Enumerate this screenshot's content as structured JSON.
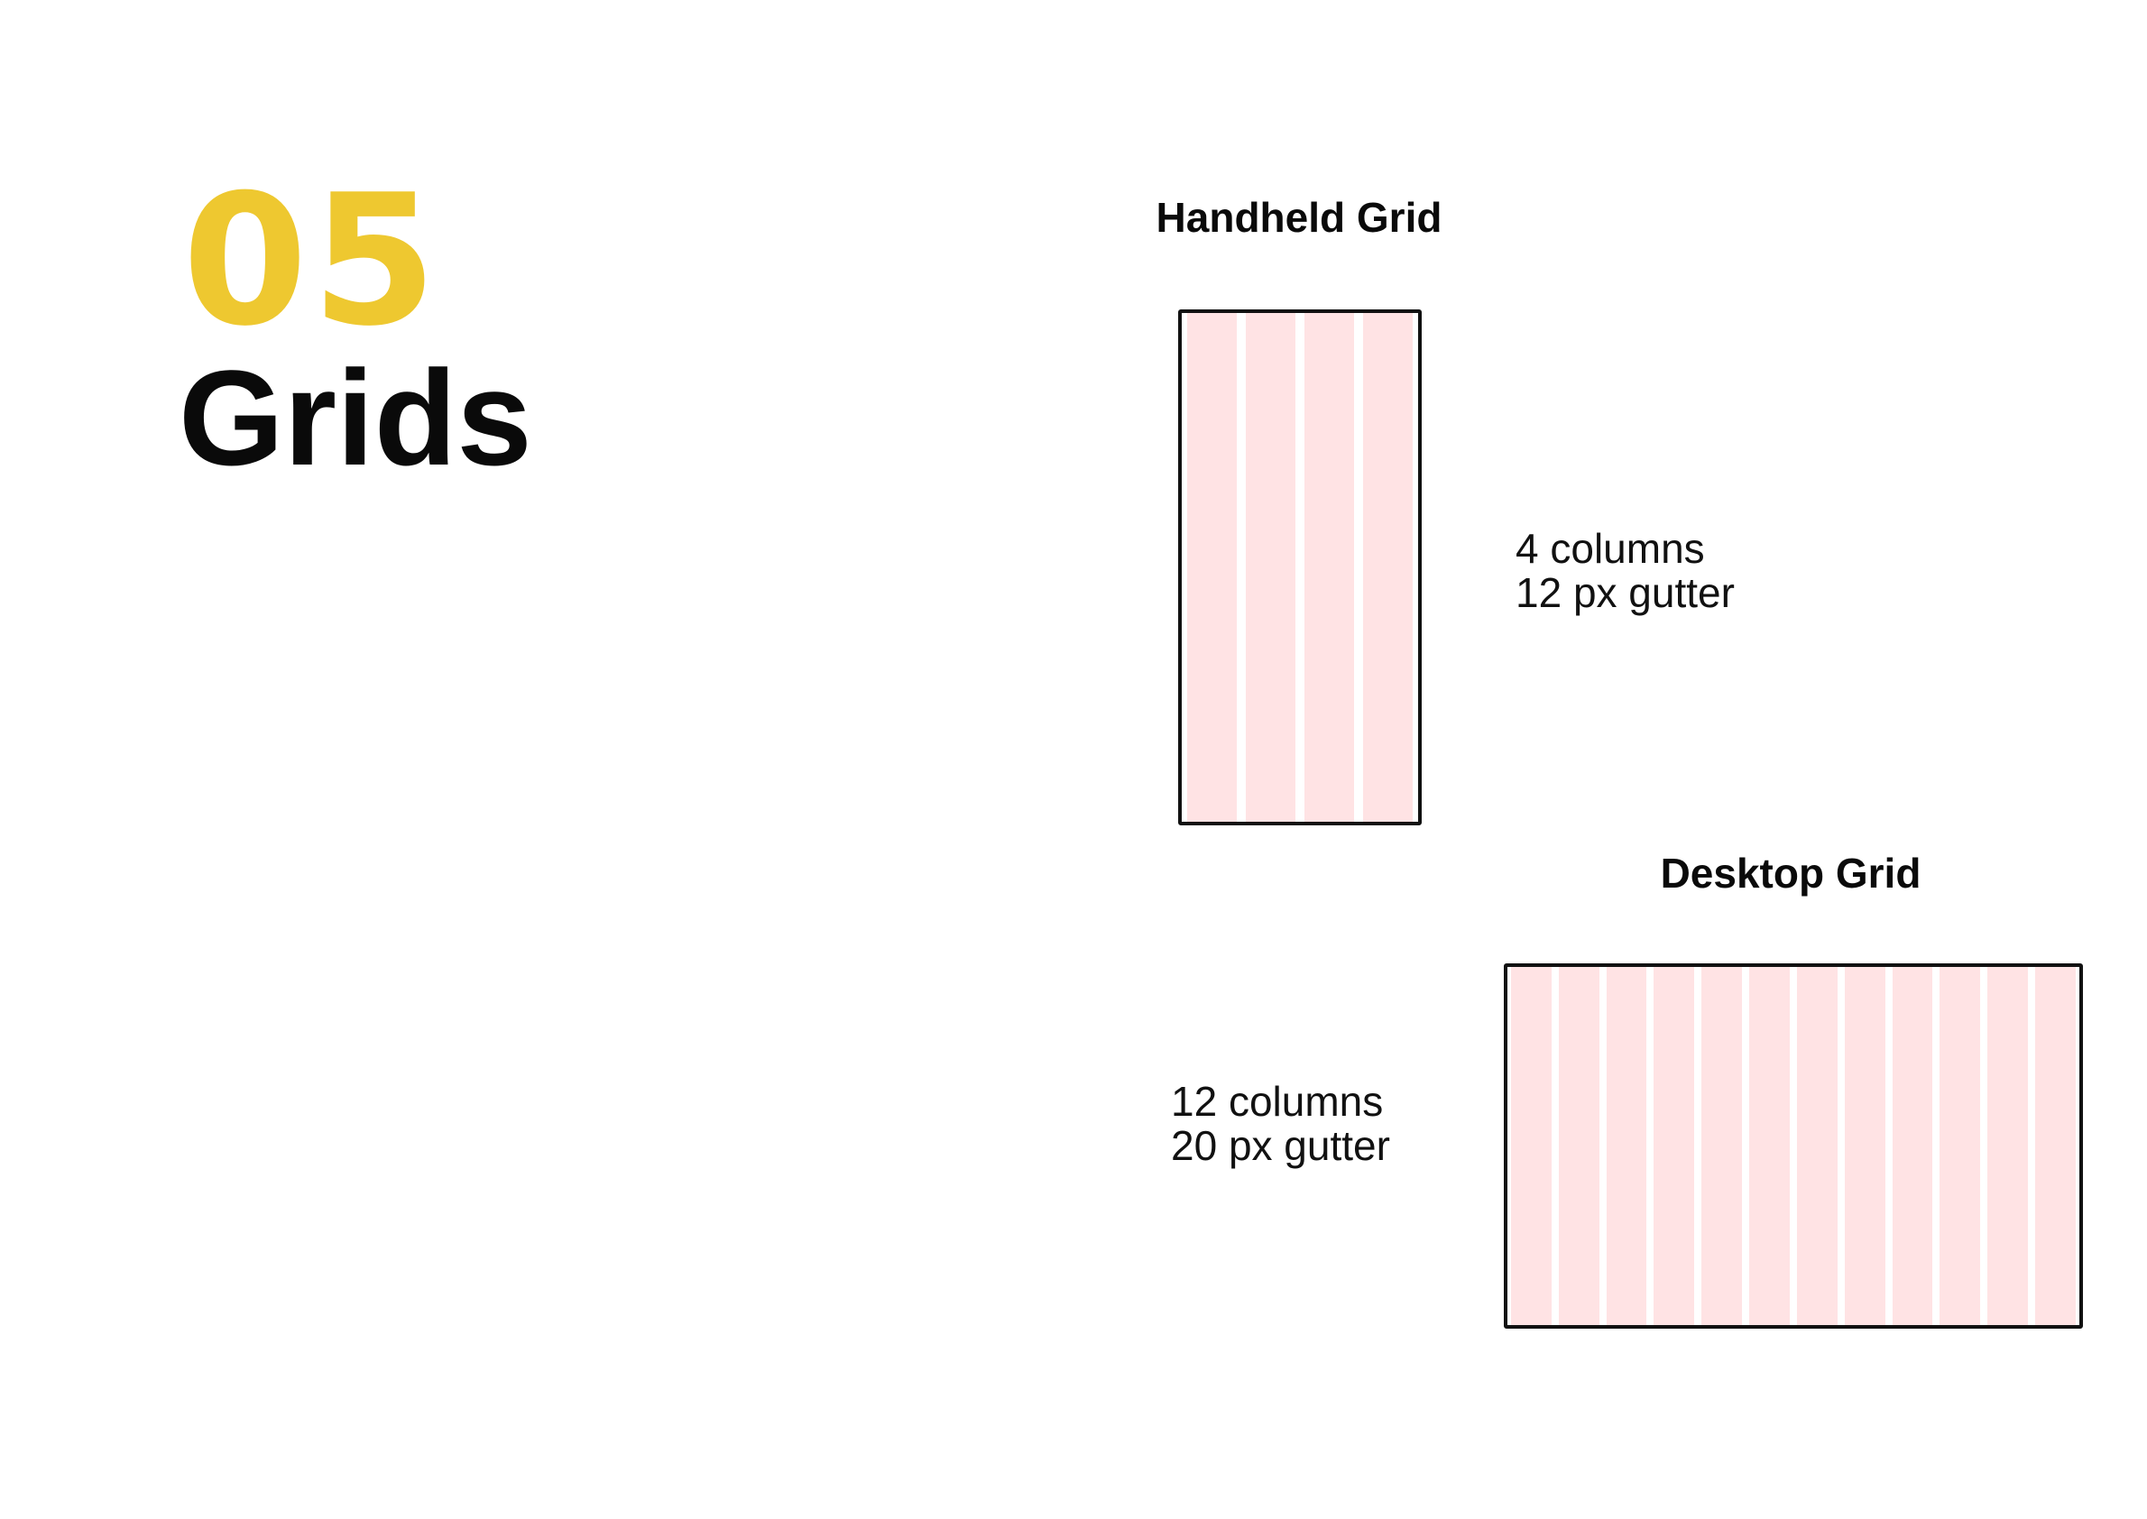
{
  "section": {
    "number": "05",
    "title": "Grids",
    "accent_color": "#EEC830"
  },
  "handheld_grid": {
    "heading": "Handheld Grid",
    "columns_label": "4 columns",
    "gutter_label": "12 px gutter",
    "column_count": 4,
    "column_color": "#FFE3E4"
  },
  "desktop_grid": {
    "heading": "Desktop Grid",
    "columns_label": "12 columns",
    "gutter_label": "20 px gutter",
    "column_count": 12,
    "column_color": "#FFE3E4"
  }
}
